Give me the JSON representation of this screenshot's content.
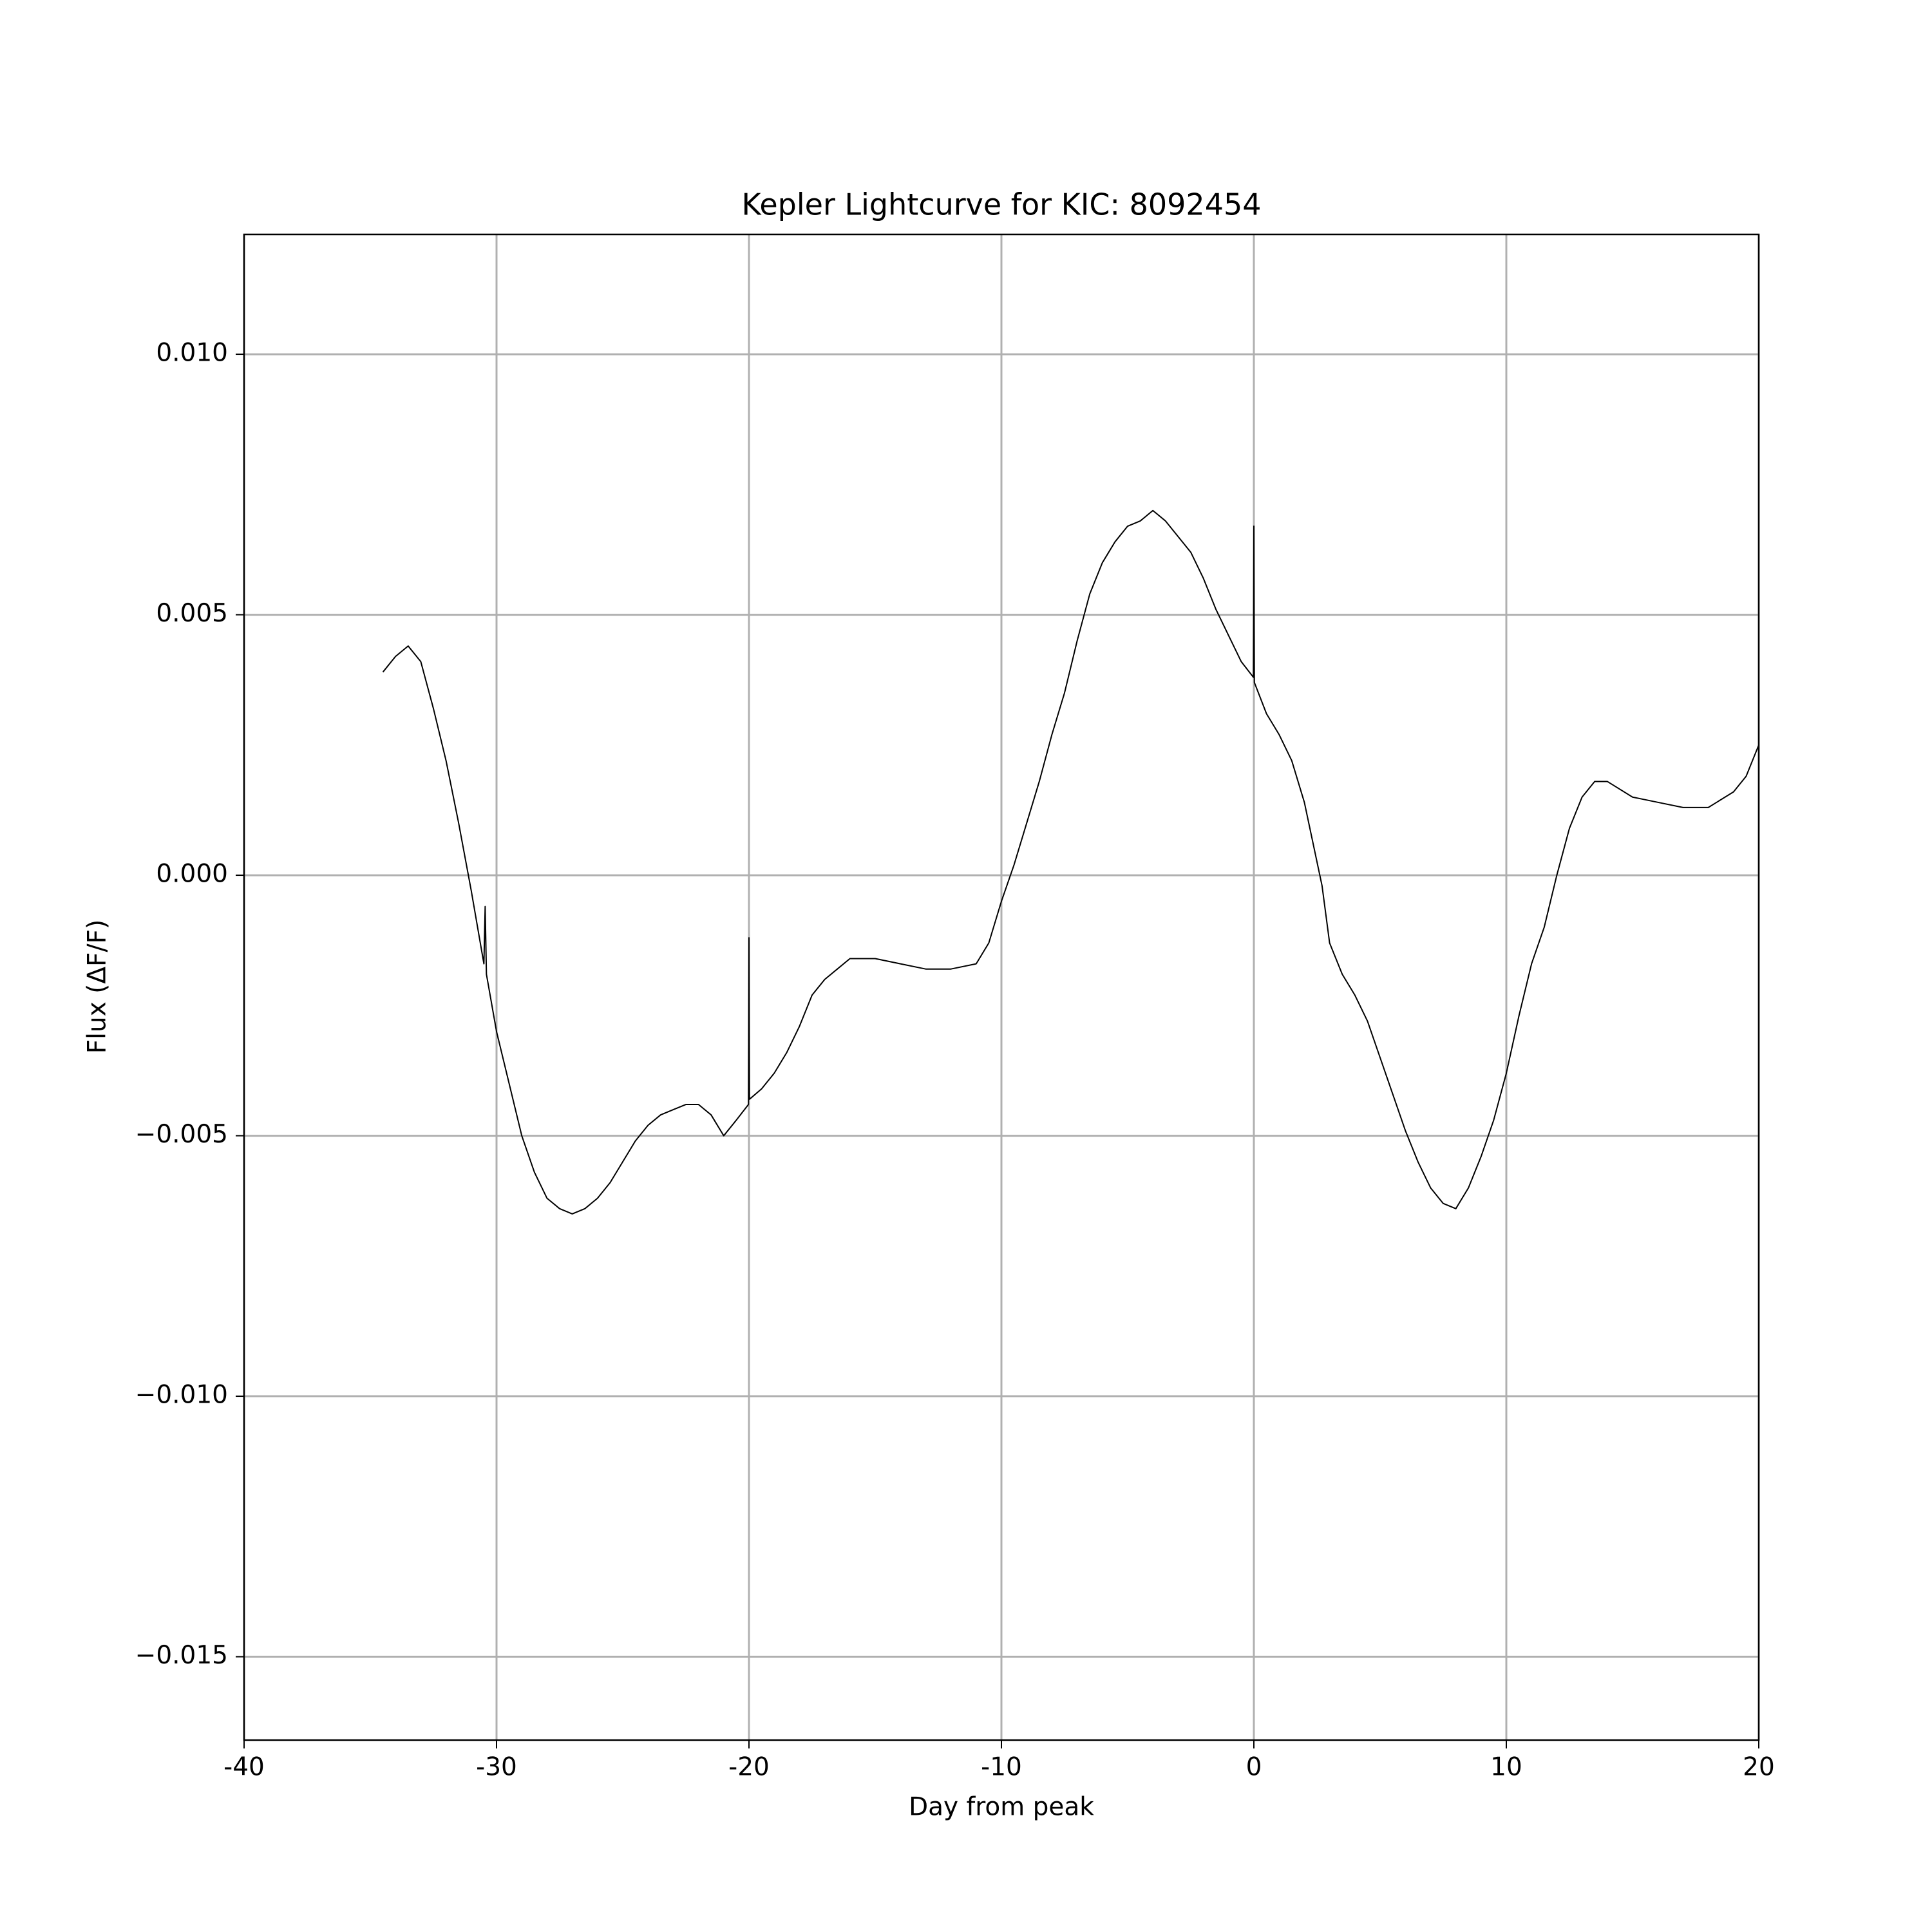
{
  "chart_data": {
    "type": "line",
    "title": "Kepler Lightcurve for KIC: 8092454",
    "x_label": "Day from peak",
    "y_label": "Flux (ΔF/F)",
    "color": "#000000",
    "grid": true,
    "xlim": [
      -40,
      20
    ],
    "ylim": [
      -0.0166,
      0.0123
    ],
    "xticks": [
      -40,
      -30,
      -20,
      -10,
      0,
      10,
      20
    ],
    "yticks": [
      {
        "value": -0.015,
        "label": "−0.015"
      },
      {
        "value": -0.01,
        "label": "−0.010"
      },
      {
        "value": -0.005,
        "label": "−0.005"
      },
      {
        "value": 0,
        "label": "0.000"
      },
      {
        "value": 0.005,
        "label": "0.005"
      },
      {
        "value": 0.01,
        "label": "0.010"
      }
    ],
    "x": [
      -34.5,
      -34,
      -33.5,
      -33,
      -32.5,
      -32,
      -31.5,
      -31,
      -30.5,
      -30.45,
      -30.4,
      -30,
      -29.5,
      -29,
      -28.5,
      -28,
      -27.5,
      -27,
      -26.5,
      -26,
      -25.5,
      -25,
      -24.5,
      -24,
      -23.5,
      -23,
      -22.5,
      -22,
      -21.5,
      -21,
      -20.5,
      -20.02,
      -20,
      -19.98,
      -19.5,
      -19,
      -18.5,
      -18,
      -17.5,
      -17,
      -16.5,
      -16,
      -15,
      -14,
      -13,
      -12,
      -11,
      -10.5,
      -10,
      -9.5,
      -9,
      -8.5,
      -8,
      -7.5,
      -7,
      -6.5,
      -6,
      -5.5,
      -5,
      -4.5,
      -4,
      -3.5,
      -3,
      -2.5,
      -2,
      -1.5,
      -1,
      -0.5,
      -0.02,
      0,
      0.02,
      0.5,
      1,
      1.5,
      2,
      2.7,
      3,
      3.5,
      4,
      4.5,
      5,
      5.5,
      6,
      6.5,
      7,
      7.5,
      8,
      8.5,
      9,
      9.5,
      10,
      10.5,
      11,
      11.5,
      12,
      12.5,
      13,
      13.5,
      14,
      15,
      16,
      17,
      18,
      19,
      19.5,
      20
    ],
    "values": [
      0.0039,
      0.0042,
      0.0044,
      0.0041,
      0.0032,
      0.0022,
      0.001,
      -0.0003,
      -0.0017,
      -0.0006,
      -0.0019,
      -0.003,
      -0.004,
      -0.005,
      -0.0057,
      -0.0062,
      -0.0064,
      -0.0065,
      -0.0064,
      -0.0062,
      -0.0059,
      -0.0055,
      -0.0051,
      -0.0048,
      -0.0046,
      -0.0045,
      -0.0044,
      -0.0044,
      -0.0046,
      -0.005,
      -0.0047,
      -0.0044,
      -0.0012,
      -0.0043,
      -0.0041,
      -0.0038,
      -0.0034,
      -0.0029,
      -0.0023,
      -0.002,
      -0.0018,
      -0.0016,
      -0.0016,
      -0.0017,
      -0.0018,
      -0.0018,
      -0.0017,
      -0.0013,
      -0.0005,
      0.0002,
      0.001,
      0.0018,
      0.0027,
      0.0035,
      0.0045,
      0.0054,
      0.006,
      0.0064,
      0.0067,
      0.0068,
      0.007,
      0.0068,
      0.0065,
      0.0062,
      0.0057,
      0.0051,
      0.0046,
      0.0041,
      0.0038,
      0.0067,
      0.0037,
      0.0031,
      0.0027,
      0.0022,
      0.0014,
      -0.0002,
      -0.0013,
      -0.0019,
      -0.0023,
      -0.0028,
      -0.0035,
      -0.0042,
      -0.0049,
      -0.0055,
      -0.006,
      -0.0063,
      -0.0064,
      -0.006,
      -0.0054,
      -0.0047,
      -0.0038,
      -0.0027,
      -0.0017,
      -0.001,
      0,
      0.0009,
      0.0015,
      0.0018,
      0.0018,
      0.0015,
      0.0014,
      0.0013,
      0.0013,
      0.0016,
      0.0019,
      0.0025
    ]
  }
}
